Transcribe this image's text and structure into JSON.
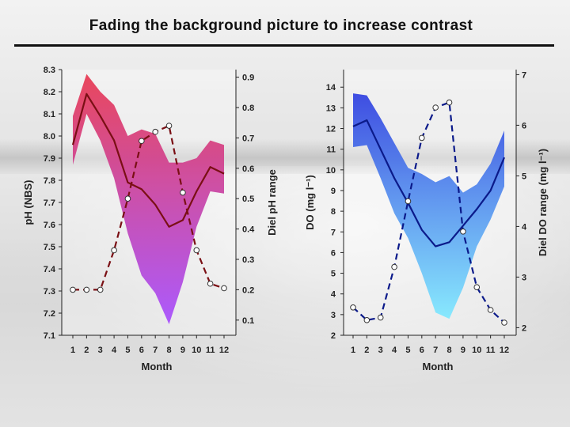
{
  "slide": {
    "title": "Fading the background picture to increase contrast"
  },
  "chart_data": [
    {
      "type": "line",
      "name": "ph",
      "x": [
        1,
        2,
        3,
        4,
        5,
        6,
        7,
        8,
        9,
        10,
        11,
        12
      ],
      "xlabel": "Month",
      "xticks": [
        "1",
        "2",
        "3",
        "4",
        "5",
        "6",
        "7",
        "8",
        "9",
        "10",
        "11",
        "12"
      ],
      "ylabel": "pH (NBS)",
      "ylim": [
        7.1,
        8.3
      ],
      "yticks": [
        "7.1",
        "7.2",
        "7.3",
        "7.4",
        "7.5",
        "7.6",
        "7.7",
        "7.8",
        "7.9",
        "8.0",
        "8.1",
        "8.2",
        "8.3"
      ],
      "y2label": "Diel pH range",
      "y2lim": [
        0.05,
        0.925
      ],
      "y2ticks": [
        "0.1",
        "0.2",
        "0.3",
        "0.4",
        "0.5",
        "0.6",
        "0.7",
        "0.8",
        "0.9"
      ],
      "mean": [
        7.96,
        8.19,
        8.09,
        7.98,
        7.79,
        7.76,
        7.69,
        7.59,
        7.62,
        7.75,
        7.86,
        7.83
      ],
      "upper": [
        8.09,
        8.28,
        8.2,
        8.14,
        8.0,
        8.03,
        8.01,
        7.88,
        7.88,
        7.9,
        7.98,
        7.96
      ],
      "lower": [
        7.87,
        8.1,
        7.98,
        7.81,
        7.56,
        7.37,
        7.29,
        7.15,
        7.34,
        7.59,
        7.75,
        7.74
      ],
      "range": [
        0.2,
        0.2,
        0.2,
        0.33,
        0.5,
        0.69,
        0.72,
        0.74,
        0.52,
        0.33,
        0.22,
        0.205
      ],
      "colors": {
        "band_top": "#e8384f",
        "band_bottom": "#a64dff",
        "line": "#7a0f14",
        "markers": "#ffffff"
      }
    },
    {
      "type": "line",
      "name": "do",
      "x": [
        1,
        2,
        3,
        4,
        5,
        6,
        7,
        8,
        9,
        10,
        11,
        12
      ],
      "xlabel": "Month",
      "xticks": [
        "1",
        "2",
        "3",
        "4",
        "5",
        "6",
        "7",
        "8",
        "9",
        "10",
        "11",
        "12"
      ],
      "ylabel": "DO (mg l⁻¹)",
      "ylim": [
        2,
        14.85
      ],
      "yticks": [
        "2",
        "3",
        "4",
        "5",
        "6",
        "7",
        "8",
        "9",
        "10",
        "11",
        "12",
        "13",
        "14"
      ],
      "y2label": "Diel DO range (mg l⁻¹)",
      "y2lim": [
        1.85,
        7.1
      ],
      "y2ticks": [
        "2",
        "3",
        "4",
        "5",
        "6",
        "7"
      ],
      "mean": [
        12.1,
        12.4,
        11.0,
        9.6,
        8.4,
        7.1,
        6.3,
        6.5,
        7.3,
        8.1,
        9.0,
        10.6
      ],
      "upper": [
        13.7,
        13.6,
        12.5,
        11.3,
        10.1,
        9.8,
        9.4,
        9.7,
        8.9,
        9.3,
        10.3,
        11.9
      ],
      "lower": [
        11.1,
        11.2,
        9.6,
        7.9,
        6.7,
        5.0,
        3.1,
        2.8,
        4.3,
        6.3,
        7.6,
        9.2
      ],
      "range": [
        2.4,
        2.15,
        2.2,
        3.2,
        4.5,
        5.75,
        6.35,
        6.45,
        3.9,
        2.8,
        2.35,
        2.1
      ],
      "colors": {
        "band_top": "#2f3fe0",
        "band_bottom": "#7fe9ff",
        "line": "#0b1a8a",
        "markers": "#ffffff"
      }
    }
  ]
}
